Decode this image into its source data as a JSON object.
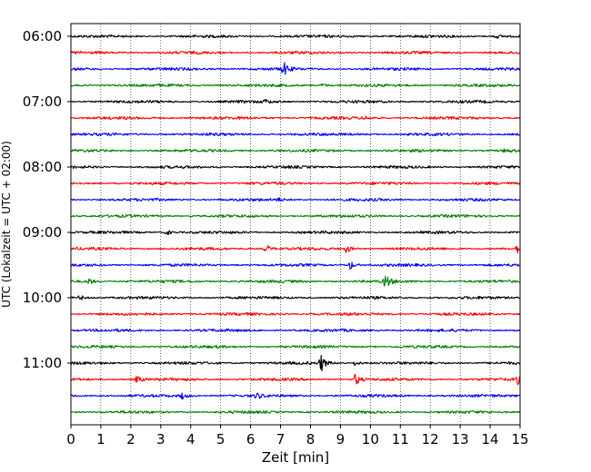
{
  "chart_data": {
    "type": "line",
    "title": "",
    "xlabel": "Zeit  [min]",
    "ylabel": "UTC (Lokalzeit = UTC + 02:00)",
    "xlim": [
      0,
      15
    ],
    "x_ticks": [
      0,
      1,
      2,
      3,
      4,
      5,
      6,
      7,
      8,
      9,
      10,
      11,
      12,
      13,
      14,
      15
    ],
    "x_tick_labels": [
      "0",
      "1",
      "2",
      "3",
      "4",
      "5",
      "6",
      "7",
      "8",
      "9",
      "10",
      "11",
      "12",
      "13",
      "14",
      "15"
    ],
    "y_tick_labels": [
      "06:00",
      "07:00",
      "08:00",
      "09:00",
      "10:00",
      "11:00"
    ],
    "grid": "vertical dotted",
    "colors": [
      "#000000",
      "#ff0000",
      "#0000ff",
      "#008000"
    ],
    "traces": [
      {
        "start": "06:00",
        "color": "#000000",
        "events": [
          {
            "x": 14.2,
            "amp": 2.5
          }
        ]
      },
      {
        "start": "06:15",
        "color": "#ff0000",
        "events": []
      },
      {
        "start": "06:30",
        "color": "#0000ff",
        "events": [
          {
            "x": 7.1,
            "amp": 8
          }
        ]
      },
      {
        "start": "06:45",
        "color": "#008000",
        "events": [
          {
            "x": 8.4,
            "amp": 2
          }
        ]
      },
      {
        "start": "07:00",
        "color": "#000000",
        "events": [
          {
            "x": 6.5,
            "amp": 2
          }
        ]
      },
      {
        "start": "07:15",
        "color": "#ff0000",
        "events": [
          {
            "x": 9.8,
            "amp": 2
          }
        ]
      },
      {
        "start": "07:30",
        "color": "#0000ff",
        "events": []
      },
      {
        "start": "07:45",
        "color": "#008000",
        "events": [
          {
            "x": 14.5,
            "amp": 2
          }
        ]
      },
      {
        "start": "08:00",
        "color": "#000000",
        "events": []
      },
      {
        "start": "08:15",
        "color": "#ff0000",
        "events": []
      },
      {
        "start": "08:30",
        "color": "#0000ff",
        "events": [
          {
            "x": 6.9,
            "amp": 2
          }
        ]
      },
      {
        "start": "08:45",
        "color": "#008000",
        "events": []
      },
      {
        "start": "09:00",
        "color": "#000000",
        "events": [
          {
            "x": 3.2,
            "amp": 3.5
          }
        ]
      },
      {
        "start": "09:15",
        "color": "#ff0000",
        "events": [
          {
            "x": 6.5,
            "amp": 5
          },
          {
            "x": 9.2,
            "amp": 4.5
          },
          {
            "x": 14.9,
            "amp": 4
          }
        ]
      },
      {
        "start": "09:30",
        "color": "#0000ff",
        "events": [
          {
            "x": 9.3,
            "amp": 6
          }
        ]
      },
      {
        "start": "09:45",
        "color": "#008000",
        "events": [
          {
            "x": 0.6,
            "amp": 3.5
          },
          {
            "x": 10.5,
            "amp": 8
          }
        ]
      },
      {
        "start": "10:00",
        "color": "#000000",
        "events": [
          {
            "x": 0.3,
            "amp": 3
          }
        ]
      },
      {
        "start": "10:15",
        "color": "#ff0000",
        "events": []
      },
      {
        "start": "10:30",
        "color": "#0000ff",
        "events": []
      },
      {
        "start": "10:45",
        "color": "#008000",
        "events": []
      },
      {
        "start": "11:00",
        "color": "#000000",
        "events": [
          {
            "x": 8.35,
            "amp": 10
          },
          {
            "x": 9.5,
            "amp": 3
          }
        ]
      },
      {
        "start": "11:15",
        "color": "#ff0000",
        "events": [
          {
            "x": 2.2,
            "amp": 4
          },
          {
            "x": 9.5,
            "amp": 7
          },
          {
            "x": 14.9,
            "amp": 5
          }
        ]
      },
      {
        "start": "11:30",
        "color": "#0000ff",
        "events": [
          {
            "x": 3.7,
            "amp": 4
          },
          {
            "x": 6.2,
            "amp": 3
          }
        ]
      },
      {
        "start": "11:45",
        "color": "#008000",
        "events": []
      }
    ]
  }
}
